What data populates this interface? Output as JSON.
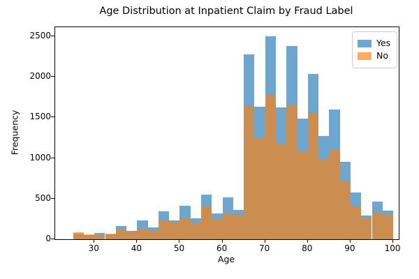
{
  "figure": {
    "title": "Age Distribution at Inpatient Claim by Fraud Label",
    "xlabel": "Age",
    "ylabel": "Frequency"
  },
  "legend": {
    "items": [
      {
        "label": "Yes",
        "color": "#1f77b4"
      },
      {
        "label": "No",
        "color": "#ff7f0e"
      }
    ]
  },
  "chart_data": {
    "type": "bar",
    "subtype": "overlaid-histogram",
    "title": "Age Distribution at Inpatient Claim by Fraud Label",
    "xlabel": "Age",
    "ylabel": "Frequency",
    "grid": false,
    "legend_position": "upper right",
    "alpha": 0.65,
    "xlim": [
      20.8,
      101.3
    ],
    "ylim": [
      0,
      2612
    ],
    "xticks": [
      30,
      40,
      50,
      60,
      70,
      80,
      90,
      100
    ],
    "yticks": [
      0,
      500,
      1000,
      1500,
      2000,
      2500
    ],
    "bin_width": 2.5,
    "bin_edges": [
      25,
      27.5,
      30,
      32.5,
      35,
      37.5,
      40,
      42.5,
      45,
      47.5,
      50,
      52.5,
      55,
      57.5,
      60,
      62.5,
      65,
      67.5,
      70,
      72.5,
      75,
      77.5,
      80,
      82.5,
      85,
      87.5,
      90,
      92.5,
      95,
      97.5,
      100
    ],
    "series": [
      {
        "name": "Yes",
        "color": "#1f77b4",
        "values": [
          65,
          55,
          75,
          60,
          160,
          105,
          230,
          145,
          340,
          230,
          410,
          260,
          550,
          320,
          515,
          360,
          2280,
          1635,
          2500,
          1620,
          2380,
          1490,
          2040,
          1270,
          1600,
          950,
          575,
          295,
          465,
          350
        ]
      },
      {
        "name": "No",
        "color": "#ff7f0e",
        "values": [
          82,
          62,
          48,
          70,
          120,
          95,
          130,
          105,
          230,
          205,
          255,
          195,
          400,
          250,
          320,
          300,
          1640,
          1250,
          1780,
          1180,
          1650,
          1080,
          1555,
          990,
          1100,
          710,
          400,
          260,
          330,
          300
        ]
      }
    ]
  }
}
